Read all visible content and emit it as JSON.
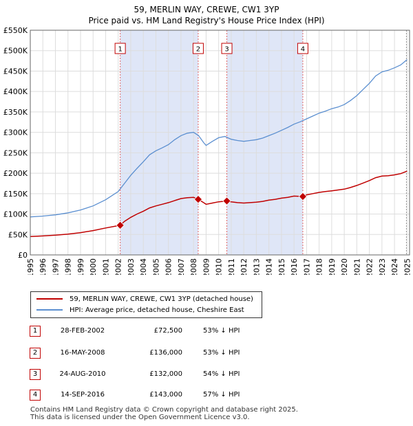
{
  "title": {
    "line1": "59, MERLIN WAY, CREWE, CW1 3YP",
    "line2": "Price paid vs. HM Land Registry's House Price Index (HPI)"
  },
  "colors": {
    "price": "#c00000",
    "hpi": "#5b8fd0",
    "shade": "#dfe6f7",
    "vline": "#e06666",
    "grid": "#dddddd"
  },
  "legend": {
    "price_label": "59, MERLIN WAY, CREWE, CW1 3YP (detached house)",
    "hpi_label": "HPI: Average price, detached house, Cheshire East"
  },
  "transactions": [
    {
      "num": "1",
      "date": "28-FEB-2002",
      "price": "£72,500",
      "hpi": "53% ↓ HPI"
    },
    {
      "num": "2",
      "date": "16-MAY-2008",
      "price": "£136,000",
      "hpi": "53% ↓ HPI"
    },
    {
      "num": "3",
      "date": "24-AUG-2010",
      "price": "£132,000",
      "hpi": "54% ↓ HPI"
    },
    {
      "num": "4",
      "date": "14-SEP-2016",
      "price": "£143,000",
      "hpi": "57% ↓ HPI"
    }
  ],
  "footer": {
    "line1": "Contains HM Land Registry data © Crown copyright and database right 2025.",
    "line2": "This data is licensed under the Open Government Licence v3.0."
  },
  "chart_data": {
    "type": "line",
    "title": "59, MERLIN WAY, CREWE, CW1 3YP",
    "subtitle": "Price paid vs. HM Land Registry's House Price Index (HPI)",
    "xlim": [
      1995,
      2025.2
    ],
    "ylim": [
      0,
      550000
    ],
    "x_ticks": [
      1995,
      1996,
      1997,
      1998,
      1999,
      2000,
      2001,
      2002,
      2003,
      2004,
      2005,
      2006,
      2007,
      2008,
      2009,
      2010,
      2011,
      2012,
      2013,
      2014,
      2015,
      2016,
      2017,
      2018,
      2019,
      2020,
      2021,
      2022,
      2023,
      2024,
      2025
    ],
    "y_ticks": [
      0,
      50000,
      100000,
      150000,
      200000,
      250000,
      300000,
      350000,
      400000,
      450000,
      500000,
      550000
    ],
    "y_tick_labels": [
      "£0",
      "£50K",
      "£100K",
      "£150K",
      "£200K",
      "£250K",
      "£300K",
      "£350K",
      "£400K",
      "£450K",
      "£500K",
      "£550K"
    ],
    "shaded_ranges": [
      [
        2002.16,
        2008.37
      ],
      [
        2010.65,
        2016.7
      ]
    ],
    "sale_markers": [
      {
        "label": "1",
        "x": 2002.16,
        "y": 72500
      },
      {
        "label": "2",
        "x": 2008.37,
        "y": 136000
      },
      {
        "label": "3",
        "x": 2010.65,
        "y": 132000
      },
      {
        "label": "4",
        "x": 2016.7,
        "y": 143000
      }
    ],
    "series": [
      {
        "name": "HPI: Average price, detached house, Cheshire East",
        "x": [
          1995,
          1996,
          1997,
          1998,
          1999,
          2000,
          2001,
          2002,
          2002.5,
          2003,
          2003.5,
          2004,
          2004.5,
          2005,
          2005.5,
          2006,
          2006.5,
          2007,
          2007.5,
          2008,
          2008.4,
          2008.8,
          2009,
          2009.5,
          2010,
          2010.5,
          2011,
          2011.5,
          2012,
          2012.5,
          2013,
          2013.5,
          2014,
          2014.5,
          2015,
          2015.5,
          2016,
          2016.5,
          2017,
          2017.5,
          2018,
          2018.5,
          2019,
          2019.5,
          2020,
          2020.5,
          2021,
          2021.5,
          2022,
          2022.5,
          2023,
          2023.5,
          2024,
          2024.5,
          2025
        ],
        "values": [
          93000,
          95000,
          98000,
          103000,
          110000,
          120000,
          135000,
          155000,
          175000,
          195000,
          212000,
          228000,
          245000,
          255000,
          262000,
          270000,
          282000,
          292000,
          298000,
          300000,
          292000,
          275000,
          268000,
          278000,
          287000,
          290000,
          283000,
          280000,
          278000,
          280000,
          282000,
          286000,
          292000,
          298000,
          305000,
          312000,
          320000,
          326000,
          333000,
          340000,
          347000,
          352000,
          358000,
          362000,
          368000,
          378000,
          390000,
          405000,
          420000,
          438000,
          448000,
          452000,
          458000,
          465000,
          478000
        ]
      },
      {
        "name": "59, MERLIN WAY, CREWE, CW1 3YP (detached house)",
        "x": [
          1995,
          1996,
          1997,
          1998,
          1999,
          2000,
          2001,
          2002.16,
          2002.5,
          2003,
          2003.5,
          2004,
          2004.5,
          2005,
          2005.5,
          2006,
          2006.5,
          2007,
          2007.5,
          2008,
          2008.37,
          2008.8,
          2009,
          2009.5,
          2010,
          2010.65,
          2011,
          2011.5,
          2012,
          2012.5,
          2013,
          2013.5,
          2014,
          2014.5,
          2015,
          2015.5,
          2016,
          2016.7,
          2017,
          2017.5,
          2018,
          2018.5,
          2019,
          2019.5,
          2020,
          2020.5,
          2021,
          2021.5,
          2022,
          2022.5,
          2023,
          2023.5,
          2024,
          2024.5,
          2025
        ],
        "values": [
          45000,
          46500,
          48500,
          51000,
          54500,
          59500,
          66000,
          72500,
          82000,
          92000,
          100000,
          107000,
          115000,
          120000,
          124000,
          128000,
          133000,
          138000,
          140000,
          141000,
          136000,
          128000,
          124000,
          127000,
          130000,
          132000,
          130000,
          128000,
          127000,
          128000,
          129000,
          131000,
          134000,
          136000,
          139000,
          141000,
          144000,
          143000,
          147000,
          150000,
          153000,
          155000,
          157000,
          159000,
          161000,
          165000,
          170000,
          176000,
          182000,
          189000,
          193000,
          194000,
          196000,
          199000,
          205000
        ]
      }
    ]
  }
}
